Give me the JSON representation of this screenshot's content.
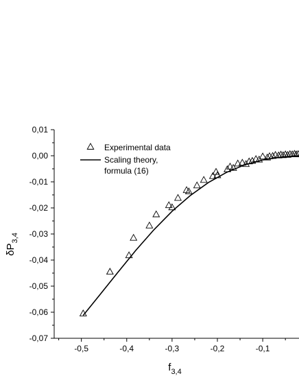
{
  "chart_data": {
    "type": "scatter",
    "xlabel": {
      "base": "f",
      "sub": "3,4"
    },
    "ylabel": {
      "prefix": "δP",
      "sub": "3,4"
    },
    "xlim": [
      -0.56,
      -0.02
    ],
    "ylim": [
      -0.07,
      0.01
    ],
    "x_ticks": [
      -0.5,
      -0.4,
      -0.3,
      -0.2,
      -0.1
    ],
    "x_tick_labels": [
      "-0,5",
      "-0,4",
      "-0,3",
      "-0,2",
      "-0,1"
    ],
    "y_ticks": [
      0.01,
      0.0,
      -0.01,
      -0.02,
      -0.03,
      -0.04,
      -0.05,
      -0.06,
      -0.07
    ],
    "y_tick_labels": [
      "0,01",
      "0,00",
      "-0,01",
      "-0,02",
      "-0,03",
      "-0,04",
      "-0,05",
      "-0,06",
      "-0,07"
    ],
    "grid": false,
    "legend_position": "top-left",
    "series": [
      {
        "name": "Experimental data",
        "kind": "scatter",
        "marker": "open-triangle",
        "color": "#000000",
        "points": [
          [
            -0.496,
            -0.0605
          ],
          [
            -0.437,
            -0.0445
          ],
          [
            -0.395,
            -0.0382
          ],
          [
            -0.385,
            -0.0315
          ],
          [
            -0.35,
            -0.0268
          ],
          [
            -0.335,
            -0.0225
          ],
          [
            -0.307,
            -0.019
          ],
          [
            -0.3,
            -0.0198
          ],
          [
            -0.287,
            -0.0162
          ],
          [
            -0.268,
            -0.0132
          ],
          [
            -0.263,
            -0.0137
          ],
          [
            -0.245,
            -0.0114
          ],
          [
            -0.23,
            -0.0093
          ],
          [
            -0.21,
            -0.0078
          ],
          [
            -0.203,
            -0.0062
          ],
          [
            -0.2,
            -0.0075
          ],
          [
            -0.178,
            -0.0052
          ],
          [
            -0.172,
            -0.0042
          ],
          [
            -0.165,
            -0.0047
          ],
          [
            -0.155,
            -0.003
          ],
          [
            -0.145,
            -0.0027
          ],
          [
            -0.137,
            -0.0032
          ],
          [
            -0.13,
            -0.0022
          ],
          [
            -0.123,
            -0.002
          ],
          [
            -0.115,
            -0.0013
          ],
          [
            -0.108,
            -0.0015
          ],
          [
            -0.1,
            -0.0003
          ],
          [
            -0.09,
            -0.0007
          ],
          [
            -0.085,
            -0.0002
          ],
          [
            -0.078,
            -0.0001
          ],
          [
            -0.072,
            0.0003
          ],
          [
            -0.065,
            0.0001
          ],
          [
            -0.06,
            0.0004
          ],
          [
            -0.055,
            0.0002
          ],
          [
            -0.05,
            0.0005
          ],
          [
            -0.045,
            0.0003
          ],
          [
            -0.04,
            0.0006
          ],
          [
            -0.035,
            0.0005
          ],
          [
            -0.03,
            0.0007
          ],
          [
            -0.026,
            0.0005
          ],
          [
            -0.022,
            0.0006
          ]
        ]
      },
      {
        "name": "Scaling theory, formula (16)",
        "legend_lines": [
          "Scaling theory,",
          "formula (16)"
        ],
        "kind": "line",
        "color": "#000000",
        "points": [
          [
            -0.496,
            -0.0612
          ],
          [
            -0.46,
            -0.0535
          ],
          [
            -0.42,
            -0.0448
          ],
          [
            -0.38,
            -0.0363
          ],
          [
            -0.34,
            -0.0284
          ],
          [
            -0.3,
            -0.0213
          ],
          [
            -0.26,
            -0.0153
          ],
          [
            -0.22,
            -0.0103
          ],
          [
            -0.18,
            -0.0064
          ],
          [
            -0.14,
            -0.0035
          ],
          [
            -0.1,
            -0.0016
          ],
          [
            -0.06,
            -0.0005
          ],
          [
            -0.02,
            0.0
          ]
        ]
      }
    ]
  }
}
